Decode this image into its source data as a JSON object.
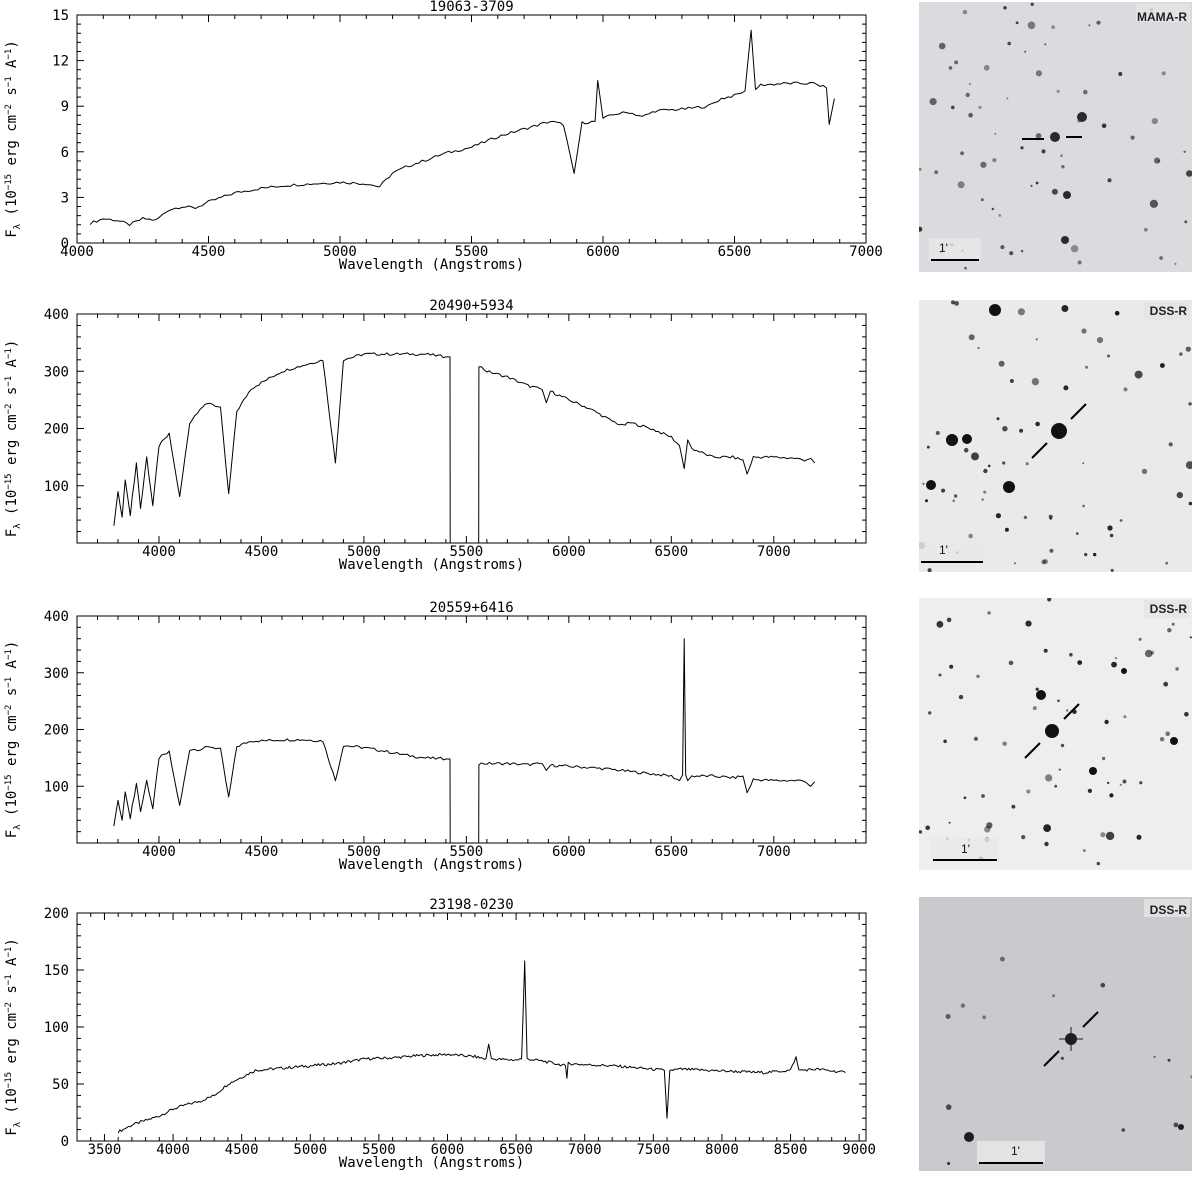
{
  "chart_data": [
    {
      "type": "line",
      "title": "19063-3709",
      "xlabel": "Wavelength (Angstroms)",
      "ylabel": "F_λ (10^-15 erg cm^-2 s^-1 A^-1)",
      "xlim": [
        4000,
        7000
      ],
      "ylim": [
        0,
        15
      ],
      "xticks": [
        4000,
        4500,
        5000,
        5500,
        6000,
        6500,
        7000
      ],
      "yticks": [
        0,
        3,
        6,
        9,
        12,
        15
      ],
      "series": [
        {
          "x": [
            4050,
            4100,
            4150,
            4200,
            4250,
            4300,
            4350,
            4400,
            4450,
            4500,
            4600,
            4700,
            4800,
            4900,
            5000,
            5100,
            5150,
            5200,
            5250,
            5300,
            5400,
            5500,
            5600,
            5700,
            5800,
            5850,
            5890,
            5920,
            5970,
            5980,
            6000,
            6050,
            6100,
            6150,
            6200,
            6300,
            6400,
            6450,
            6500,
            6540,
            6563,
            6580,
            6600,
            6700,
            6800,
            6850,
            6860,
            6880
          ],
          "y": [
            1.3,
            1.6,
            1.5,
            1.2,
            1.6,
            1.5,
            2.2,
            2.4,
            2.3,
            2.7,
            3.3,
            3.6,
            3.8,
            3.9,
            4.0,
            3.9,
            3.7,
            4.6,
            5.0,
            5.3,
            5.9,
            6.3,
            7.0,
            7.5,
            8.0,
            7.8,
            4.5,
            7.9,
            8.0,
            10.7,
            8.2,
            8.5,
            8.6,
            8.3,
            8.7,
            8.8,
            9.0,
            9.5,
            9.7,
            10.0,
            14.0,
            10.1,
            10.4,
            10.5,
            10.5,
            10.2,
            7.8,
            9.5
          ]
        }
      ]
    },
    {
      "type": "line",
      "title": "20490+5934",
      "xlabel": "Wavelength (Angstroms)",
      "ylabel": "F_λ (10^-15 erg cm^-2 s^-1 A^-1)",
      "xlim": [
        3600,
        7450
      ],
      "ylim": [
        0,
        400
      ],
      "xticks": [
        4000,
        4500,
        5000,
        5500,
        6000,
        6500,
        7000
      ],
      "yticks": [
        100,
        200,
        300,
        400
      ],
      "series": [
        {
          "x": [
            3780,
            3800,
            3820,
            3835,
            3860,
            3890,
            3910,
            3940,
            3970,
            4000,
            4050,
            4101,
            4150,
            4200,
            4250,
            4300,
            4340,
            4380,
            4450,
            4500,
            4600,
            4700,
            4800,
            4861,
            4900,
            5000,
            5100,
            5200,
            5300,
            5400,
            5420,
            5421,
            5560,
            5561,
            5600,
            5700,
            5800,
            5870,
            5890,
            5910,
            6000,
            6100,
            6200,
            6260,
            6300,
            6400,
            6500,
            6540,
            6563,
            6580,
            6600,
            6700,
            6800,
            6850,
            6870,
            6900,
            7000,
            7100,
            7150,
            7180,
            7200
          ],
          "y": [
            30,
            90,
            45,
            110,
            50,
            140,
            60,
            150,
            65,
            170,
            190,
            80,
            210,
            235,
            245,
            235,
            85,
            230,
            270,
            280,
            300,
            310,
            320,
            140,
            320,
            330,
            330,
            330,
            330,
            325,
            325,
            0,
            0,
            310,
            300,
            290,
            275,
            268,
            245,
            265,
            250,
            235,
            215,
            205,
            210,
            200,
            185,
            170,
            130,
            180,
            165,
            150,
            150,
            145,
            120,
            150,
            150,
            148,
            145,
            148,
            140
          ]
        }
      ]
    },
    {
      "type": "line",
      "title": "20559+6416",
      "xlabel": "Wavelength (Angstroms)",
      "ylabel": "F_λ (10^-15 erg cm^-2 s^-1 A^-1)",
      "xlim": [
        3600,
        7450
      ],
      "ylim": [
        0,
        400
      ],
      "xticks": [
        4000,
        4500,
        5000,
        5500,
        6000,
        6500,
        7000
      ],
      "yticks": [
        100,
        200,
        300,
        400
      ],
      "series": [
        {
          "x": [
            3780,
            3800,
            3820,
            3835,
            3860,
            3890,
            3910,
            3940,
            3970,
            4000,
            4050,
            4101,
            4150,
            4200,
            4250,
            4300,
            4340,
            4380,
            4450,
            4500,
            4600,
            4700,
            4800,
            4861,
            4900,
            5000,
            5100,
            5200,
            5300,
            5400,
            5420,
            5421,
            5560,
            5561,
            5600,
            5700,
            5800,
            5870,
            5890,
            5910,
            6000,
            6100,
            6200,
            6300,
            6400,
            6500,
            6540,
            6555,
            6563,
            6570,
            6580,
            6600,
            6700,
            6800,
            6850,
            6870,
            6900,
            7000,
            7100,
            7150,
            7180,
            7200
          ],
          "y": [
            30,
            75,
            40,
            90,
            45,
            105,
            55,
            110,
            60,
            150,
            160,
            65,
            165,
            165,
            170,
            165,
            80,
            170,
            180,
            180,
            182,
            182,
            180,
            110,
            172,
            168,
            162,
            155,
            150,
            148,
            148,
            0,
            0,
            140,
            140,
            140,
            138,
            140,
            128,
            137,
            135,
            133,
            130,
            126,
            122,
            118,
            110,
            120,
            360,
            120,
            110,
            118,
            118,
            115,
            118,
            88,
            112,
            110,
            110,
            110,
            100,
            108
          ]
        }
      ]
    },
    {
      "type": "line",
      "title": "23198-0230",
      "xlabel": "Wavelength (Angstroms)",
      "ylabel": "F_λ (10^-15 erg cm^-2 s^-1 A^-1)",
      "xlim": [
        3300,
        9050
      ],
      "ylim": [
        0,
        200
      ],
      "xticks": [
        3500,
        4000,
        4500,
        5000,
        5500,
        6000,
        6500,
        7000,
        7500,
        8000,
        8500,
        9000
      ],
      "yticks": [
        0,
        50,
        100,
        150,
        200
      ],
      "series": [
        {
          "x": [
            3600,
            3700,
            3800,
            3900,
            4000,
            4100,
            4200,
            4300,
            4400,
            4500,
            4600,
            4800,
            5000,
            5200,
            5400,
            5600,
            5800,
            6000,
            6200,
            6280,
            6300,
            6320,
            6500,
            6540,
            6563,
            6580,
            6700,
            6860,
            6870,
            6880,
            7000,
            7200,
            7400,
            7580,
            7600,
            7620,
            7700,
            7900,
            8100,
            8300,
            8500,
            8540,
            8560,
            8700,
            8900
          ],
          "y": [
            8,
            14,
            18,
            22,
            28,
            32,
            35,
            40,
            50,
            56,
            62,
            64,
            66,
            68,
            72,
            73,
            75,
            76,
            74,
            72,
            85,
            72,
            71,
            72,
            158,
            72,
            70,
            66,
            55,
            68,
            67,
            66,
            64,
            62,
            20,
            62,
            63,
            62,
            61,
            60,
            62,
            74,
            62,
            63,
            60
          ]
        }
      ]
    }
  ],
  "finding_charts": [
    {
      "survey": "MAMA-R",
      "scale_label": "1'"
    },
    {
      "survey": "DSS-R",
      "scale_label": "1'"
    },
    {
      "survey": "DSS-R",
      "scale_label": "1'"
    },
    {
      "survey": "DSS-R",
      "scale_label": "1'"
    }
  ],
  "axis_text": {
    "flux_prefix": "F",
    "flux_sub": "λ",
    "flux_paren": " (10",
    "flux_exp": "−15",
    "flux_unit1": " erg cm",
    "flux_exp2": "−2",
    "flux_unit2": " s",
    "flux_exp3": "−1",
    "flux_unit3": " A",
    "flux_exp4": "−1",
    "flux_close": ")"
  }
}
